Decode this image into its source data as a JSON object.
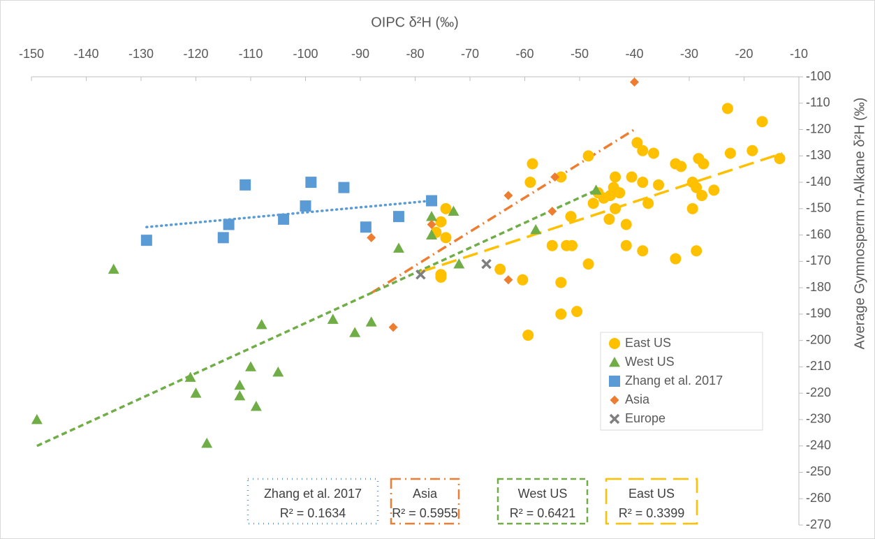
{
  "chart_data": {
    "type": "scatter",
    "x_label": "OIPC δ²H (‰)",
    "y_label": "Average Gymnosperm n-Alkane δ²H (‰)",
    "xlim": [
      -150,
      -10
    ],
    "xticks": [
      -150,
      -140,
      -130,
      -120,
      -110,
      -100,
      -90,
      -80,
      -70,
      -60,
      -50,
      -40,
      -30,
      -20,
      -10
    ],
    "ylim": [
      -270,
      -100
    ],
    "yticks": [
      -270,
      -260,
      -250,
      -240,
      -230,
      -220,
      -210,
      -200,
      -190,
      -180,
      -170,
      -160,
      -150,
      -140,
      -130,
      -120,
      -110,
      -100
    ],
    "legend": "right",
    "series": [
      {
        "name": "East US",
        "color": "#FFC000",
        "marker": "circle",
        "x": [
          -23,
          -16.7,
          -13.5,
          -18.5,
          -22.5,
          -28.3,
          -27.4,
          -27.7,
          -25.5,
          -29.4,
          -28.7,
          -29.4,
          -32.5,
          -31.5,
          -35.6,
          -36.5,
          -38.5,
          -39.5,
          -40.5,
          -38.5,
          -37.5,
          -43.5,
          -43.8,
          -42.7,
          -44.4,
          -43.5,
          -44.6,
          -45.6,
          -46.6,
          -47.5,
          -41.5,
          -41.5,
          -38.5,
          -32.5,
          -28.7,
          -48.4,
          -58.6,
          -59,
          -53.4,
          -51.6,
          -52.4,
          -51.4,
          -55,
          -48.4,
          -53.4,
          -60.4,
          -64.5,
          -53.4,
          -50.5,
          -59.4,
          -74.4,
          -75.3,
          -76.2,
          -74.4,
          -75.3,
          -75.3
        ],
        "y": [
          -112,
          -117,
          -131,
          -128,
          -129,
          -131,
          -133,
          -145,
          -143,
          -140,
          -142,
          -150,
          -133,
          -134,
          -141,
          -129,
          -128,
          -125,
          -138,
          -140,
          -148,
          -138,
          -142,
          -144,
          -145,
          -150,
          -154,
          -146,
          -144,
          -148,
          -156,
          -164,
          -166,
          -169,
          -166,
          -130,
          -133,
          -140,
          -138,
          -153,
          -164,
          -164,
          -164,
          -171,
          -178,
          -177,
          -173,
          -190,
          -189,
          -198,
          -150,
          -155,
          -159,
          -161,
          -176,
          -175
        ]
      },
      {
        "name": "West US",
        "color": "#70AD47",
        "marker": "triangle",
        "x": [
          -149,
          -135,
          -118,
          -121,
          -120,
          -112,
          -112,
          -110,
          -109,
          -108,
          -105,
          -95,
          -91,
          -88,
          -83,
          -77,
          -77,
          -73,
          -72,
          -58,
          -47
        ],
        "y": [
          -230,
          -173,
          -239,
          -214,
          -220,
          -217,
          -221,
          -210,
          -225,
          -194,
          -212,
          -192,
          -197,
          -193,
          -165,
          -153,
          -160,
          -151,
          -171,
          -158,
          -143
        ]
      },
      {
        "name": "Zhang et al. 2017",
        "color": "#5B9BD5",
        "marker": "square",
        "x": [
          -129,
          -115,
          -114,
          -111,
          -104,
          -100,
          -99,
          -93,
          -89,
          -83,
          -77
        ],
        "y": [
          -162,
          -161,
          -156,
          -141,
          -154,
          -149,
          -140,
          -142,
          -157,
          -153,
          -147
        ]
      },
      {
        "name": "Asia",
        "color": "#ED7D31",
        "marker": "diamond",
        "x": [
          -40,
          -63,
          -54.5,
          -55,
          -77,
          -88,
          -84,
          -63
        ],
        "y": [
          -102,
          -145,
          -138,
          -151,
          -156,
          -161,
          -195,
          -177
        ]
      },
      {
        "name": "Europe",
        "color": "#7F7F7F",
        "marker": "x",
        "x": [
          -79,
          -67
        ],
        "y": [
          -175,
          -171
        ]
      }
    ],
    "trendlines": [
      {
        "label": "Zhang et al. 2017",
        "r2_label": "R² = 0.1634",
        "color": "#5B9BD5",
        "style": "dotted",
        "x": [
          -129,
          -77
        ],
        "y": [
          -157,
          -147
        ]
      },
      {
        "label": "Asia",
        "r2_label": "R² = 0.5955",
        "color": "#ED7D31",
        "style": "dashdot",
        "x": [
          -88,
          -40
        ],
        "y": [
          -182,
          -120
        ]
      },
      {
        "label": "West US",
        "r2_label": "R² = 0.6421",
        "color": "#70AD47",
        "style": "dashed",
        "x": [
          -149,
          -47
        ],
        "y": [
          -240,
          -143
        ]
      },
      {
        "label": "East US",
        "r2_label": "R² = 0.3399",
        "color": "#FFC000",
        "style": "longdash",
        "x": [
          -79,
          -13
        ],
        "y": [
          -174,
          -129
        ]
      }
    ]
  }
}
